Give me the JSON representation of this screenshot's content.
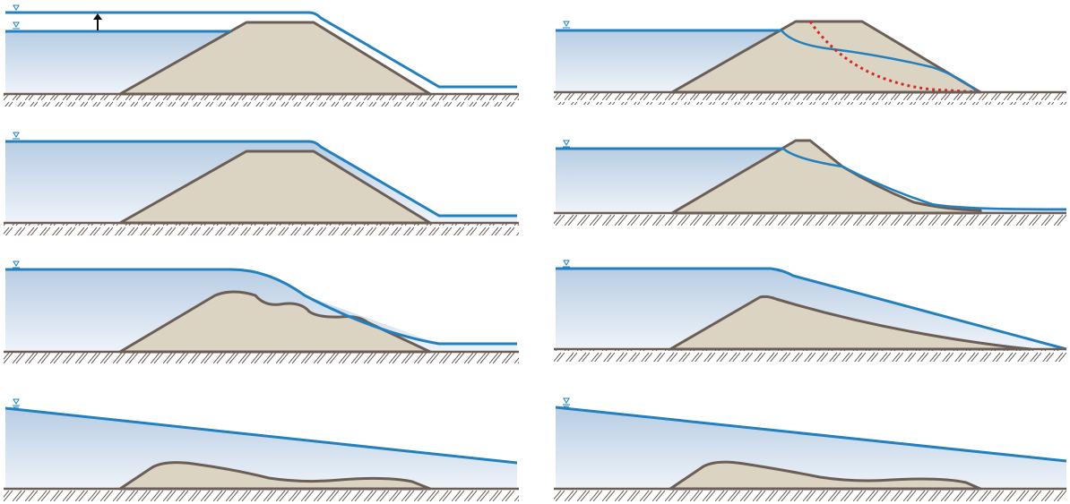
{
  "figure": {
    "colors": {
      "water_fill_top": "#b8cde3",
      "water_fill_bottom": "#eef3f9",
      "water_line": "#2380be",
      "embankment_fill": "#dcd4c2",
      "embankment_stroke": "#6b5e57",
      "ground": "#6b5e57",
      "failure_surface": "#d42a2a",
      "arrow": "#111111",
      "symbol": "#2380be"
    },
    "icons": {
      "water_level": "water-level-triangle-icon",
      "rise": "arrow-up-icon",
      "ground": "ground-hatch-icon"
    },
    "panels": [
      {
        "id": "left-1",
        "mode": "overtopping-onset",
        "rise_arrow": true,
        "two_levels": true
      },
      {
        "id": "left-2",
        "mode": "overflow",
        "rise_arrow": false,
        "two_levels": false
      },
      {
        "id": "left-3",
        "mode": "crest-erosion",
        "rise_arrow": false,
        "two_levels": false
      },
      {
        "id": "left-4",
        "mode": "washed-out",
        "rise_arrow": false,
        "two_levels": false
      },
      {
        "id": "right-1",
        "mode": "seepage-slip-surface",
        "failure_surface": true
      },
      {
        "id": "right-2",
        "mode": "seepage-slope-collapse",
        "failure_surface": false
      },
      {
        "id": "right-3",
        "mode": "breach-flow",
        "failure_surface": false
      },
      {
        "id": "right-4",
        "mode": "washed-out",
        "failure_surface": false
      }
    ]
  }
}
